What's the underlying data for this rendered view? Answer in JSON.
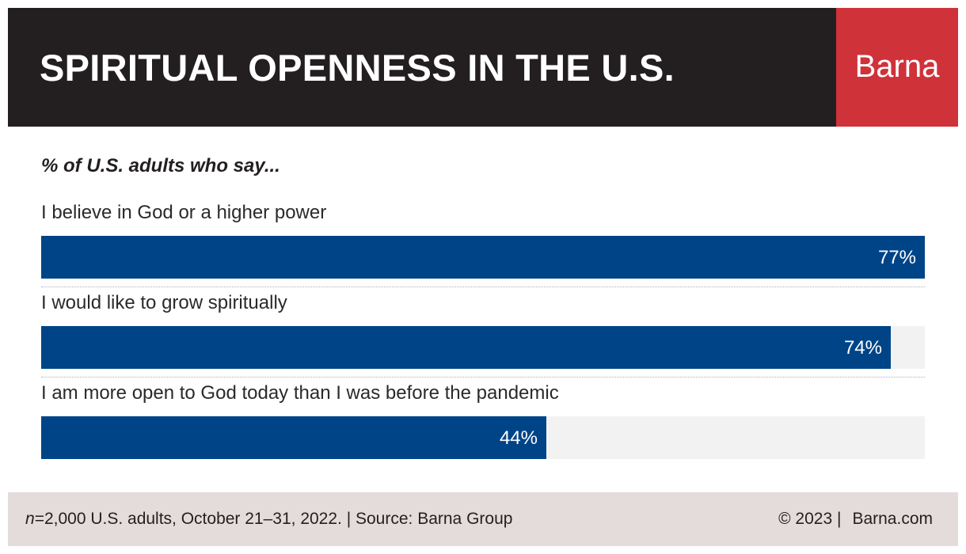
{
  "header": {
    "title": "SPIRITUAL OPENNESS IN THE U.S.",
    "brand": "Barna"
  },
  "colors": {
    "header_bg": "#231f20",
    "brand_bg": "#d0323a",
    "bar": "#004488",
    "track": "#f2f2f2",
    "footer_bg": "#e3dcdb"
  },
  "chart_data": {
    "type": "bar",
    "orientation": "horizontal",
    "title": "SPIRITUAL OPENNESS IN THE U.S.",
    "subtitle": "% of U.S. adults who say...",
    "categories": [
      "I believe in God or a higher power",
      "I would like to grow spiritually",
      "I am more open to God today than I was before the pandemic"
    ],
    "values": [
      77,
      74,
      44
    ],
    "value_labels": [
      "77%",
      "74%",
      "44%"
    ],
    "xlim": [
      0,
      77
    ],
    "unit": "%",
    "grid": false,
    "legend": "none"
  },
  "footer": {
    "n_letter": "n",
    "sample": "=2,000 U.S. adults, October 21–31, 2022. | Source: Barna Group",
    "copyright": "© 2023 |",
    "website": "Barna.com"
  }
}
